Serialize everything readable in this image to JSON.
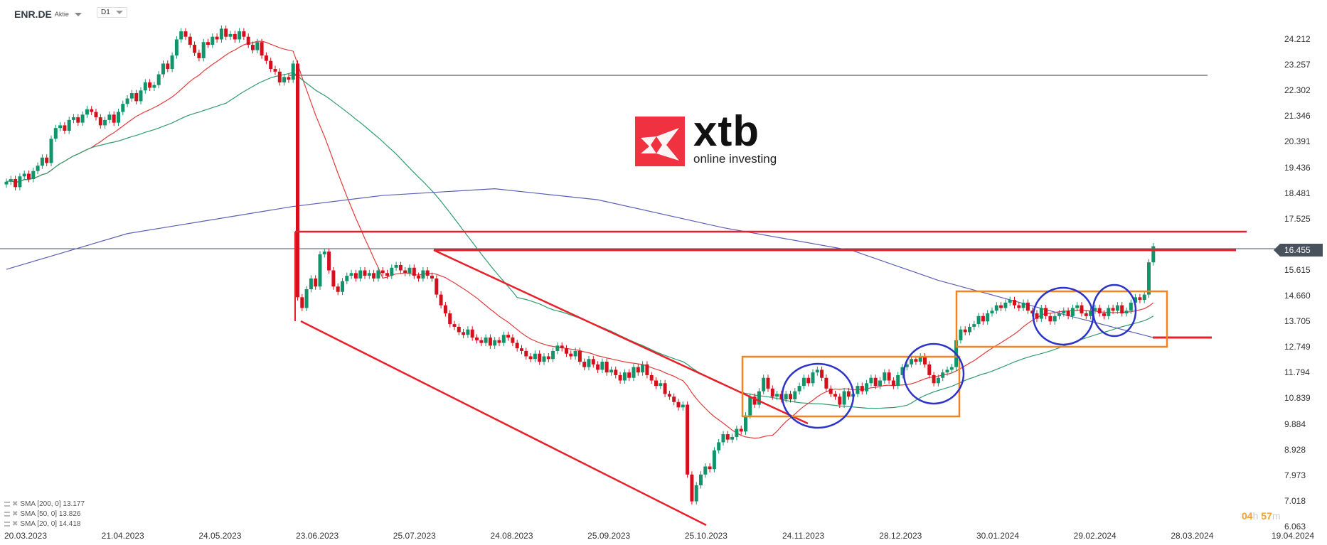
{
  "header": {
    "symbol": "ENR.DE",
    "type": "Aktie",
    "timeframe": "D1"
  },
  "current_price": "16.455",
  "countdown": {
    "hours": "04",
    "h": "h",
    "minutes": "57",
    "m": "m"
  },
  "logo": {
    "text": "xtb",
    "tagline": "online investing"
  },
  "legend": [
    {
      "label": "SMA [200, 0] 13.177",
      "color": "#5b5fb5"
    },
    {
      "label": "SMA [50, 0] 13.826",
      "color": "#2f9c6c"
    },
    {
      "label": "SMA [20, 0] 14.418",
      "color": "#e23b3b"
    }
  ],
  "colors": {
    "up": "#12946a",
    "down": "#d4101c",
    "annotation_red": "#e8202a",
    "box_orange": "#f58220",
    "circle_blue": "#2c33c8"
  },
  "chart_data": {
    "type": "candlestick",
    "xlabel": "",
    "ylabel": "",
    "ylim": [
      6.063,
      24.212
    ],
    "y_ticks": [
      "24.212",
      "23.257",
      "22.302",
      "21.346",
      "20.391",
      "19.436",
      "18.481",
      "17.525",
      "15.615",
      "14.660",
      "13.705",
      "12.749",
      "11.794",
      "10.839",
      "9.884",
      "8.928",
      "7.973",
      "7.018",
      "6.063"
    ],
    "x_ticks": [
      "20.03.2023",
      "21.04.2023",
      "24.05.2023",
      "23.06.2023",
      "25.07.2023",
      "24.08.2023",
      "25.09.2023",
      "25.10.2023",
      "24.11.2023",
      "28.12.2023",
      "30.01.2024",
      "29.02.2024",
      "28.03.2024",
      "19.04.2024"
    ],
    "first_open": 18.8,
    "closes": [
      18.9,
      19.0,
      18.7,
      19.1,
      19.2,
      19.0,
      19.3,
      19.5,
      19.8,
      19.6,
      20.5,
      20.9,
      21.0,
      20.8,
      21.2,
      21.3,
      21.1,
      21.4,
      21.6,
      21.5,
      21.3,
      21.0,
      21.2,
      21.4,
      21.1,
      21.5,
      21.8,
      22.0,
      22.2,
      21.9,
      22.3,
      22.6,
      22.4,
      22.5,
      22.9,
      23.3,
      23.1,
      23.6,
      24.2,
      24.5,
      24.3,
      24.0,
      23.7,
      23.5,
      24.1,
      24.0,
      24.3,
      24.2,
      24.6,
      24.3,
      24.4,
      24.2,
      24.5,
      24.3,
      24.0,
      23.8,
      24.1,
      23.6,
      23.4,
      23.1,
      23.0,
      22.6,
      22.8,
      22.7,
      23.3,
      14.6,
      14.2,
      14.9,
      15.3,
      15.0,
      16.2,
      16.3,
      15.6,
      15.0,
      14.8,
      15.2,
      15.4,
      15.5,
      15.3,
      15.6,
      15.4,
      15.5,
      15.3,
      15.6,
      15.5,
      15.4,
      15.7,
      15.8,
      15.6,
      15.5,
      15.7,
      15.4,
      15.3,
      15.6,
      15.4,
      15.3,
      14.7,
      14.3,
      14.0,
      13.6,
      13.5,
      13.3,
      13.2,
      13.4,
      13.1,
      13.0,
      12.9,
      13.1,
      12.8,
      13.0,
      12.9,
      13.2,
      13.1,
      12.9,
      12.7,
      12.6,
      12.4,
      12.3,
      12.5,
      12.2,
      12.4,
      12.3,
      12.6,
      12.8,
      12.7,
      12.5,
      12.4,
      12.6,
      12.2,
      12.0,
      12.3,
      12.1,
      11.9,
      12.2,
      11.8,
      11.9,
      11.7,
      11.5,
      11.8,
      11.6,
      12.0,
      11.8,
      12.1,
      11.7,
      11.5,
      11.3,
      11.4,
      11.0,
      10.9,
      10.7,
      10.5,
      10.6,
      8.0,
      7.0,
      7.6,
      8.0,
      8.3,
      8.2,
      8.9,
      9.2,
      9.5,
      9.3,
      9.4,
      9.7,
      9.6,
      10.2,
      10.9,
      10.6,
      11.1,
      11.6,
      11.2,
      10.9,
      11.0,
      10.8,
      11.0,
      10.8,
      11.1,
      11.3,
      11.6,
      11.4,
      11.8,
      11.9,
      11.6,
      11.2,
      11.0,
      10.9,
      10.6,
      11.1,
      10.9,
      11.0,
      11.3,
      11.1,
      11.4,
      11.6,
      11.3,
      11.5,
      11.8,
      11.5,
      11.3,
      11.7,
      12.0,
      12.1,
      12.3,
      12.2,
      12.4,
      12.1,
      11.7,
      11.4,
      11.6,
      11.8,
      11.9,
      12.0,
      13.0,
      13.4,
      13.3,
      13.5,
      13.6,
      13.9,
      13.7,
      14.0,
      14.1,
      14.3,
      14.2,
      14.4,
      14.5,
      14.3,
      14.2,
      14.4,
      14.1,
      14.0,
      13.8,
      14.2,
      13.9,
      13.7,
      13.9,
      14.0,
      14.1,
      13.9,
      14.2,
      14.3,
      14.0,
      13.9,
      14.1,
      14.2,
      14.0,
      13.9,
      14.2,
      14.1,
      14.3,
      14.0,
      14.1,
      14.4,
      14.6,
      14.5,
      14.7,
      15.9,
      16.5
    ],
    "sma200_points": [
      [
        0,
        15.64
      ],
      [
        27,
        16.97
      ],
      [
        64,
        17.98
      ],
      [
        84,
        18.39
      ],
      [
        109,
        18.64
      ],
      [
        132,
        18.23
      ],
      [
        160,
        17.19
      ],
      [
        189,
        16.33
      ],
      [
        208,
        15.23
      ],
      [
        236,
        13.96
      ],
      [
        256,
        13.1
      ]
    ],
    "annotations": {
      "resistance_lines": [
        16.95,
        16.4
      ],
      "horizontal_black": 22.85
    }
  }
}
